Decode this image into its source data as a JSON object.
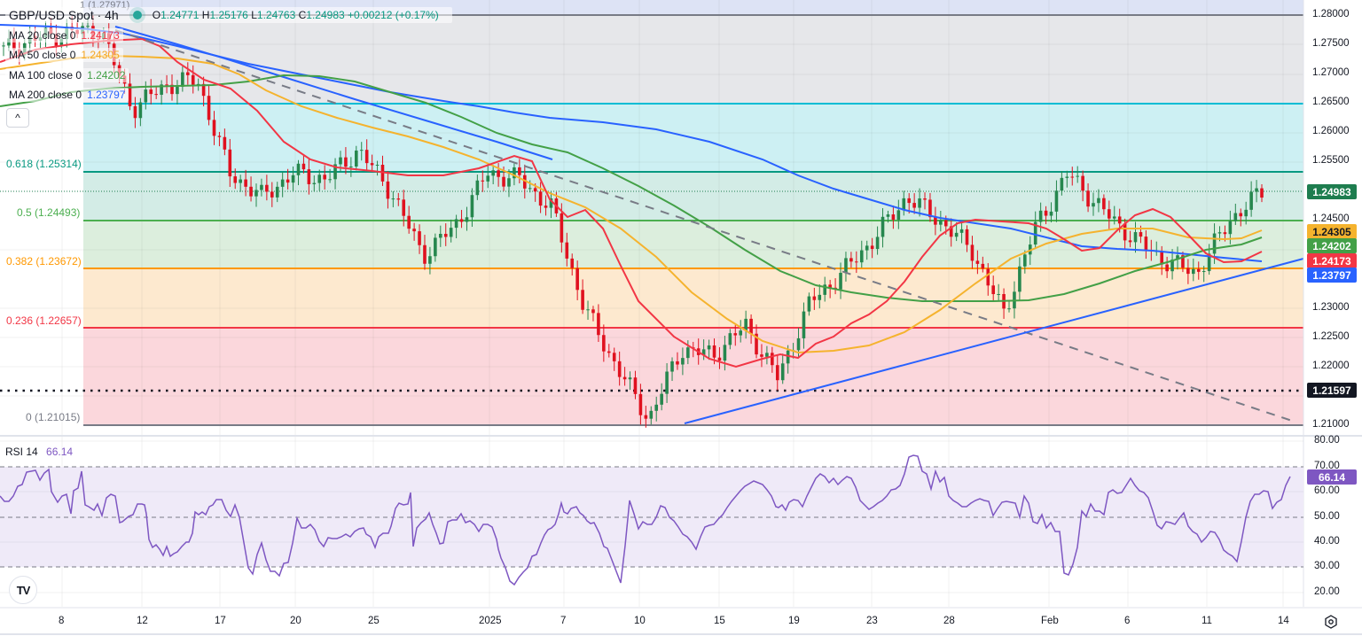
{
  "header": {
    "symbol": "GBP/USD Spot · 4h",
    "ohlc": {
      "open_label": "O",
      "open": "1.24771",
      "high_label": "H",
      "high": "1.25176",
      "low_label": "L",
      "low": "1.24763",
      "close_label": "C",
      "close": "1.24983",
      "change": "+0.00212 (+0.17%)"
    },
    "top_hidden_label": "1 (1.27971)"
  },
  "indicators": [
    {
      "name": "MA 20 close 0",
      "value": "1.24173",
      "color": "#f23645"
    },
    {
      "name": "MA 50 close 0",
      "value": "1.24305",
      "color": "#f5a623"
    },
    {
      "name": "MA 100 close 0",
      "value": "1.24202",
      "color": "#43a047"
    },
    {
      "name": "MA 200 close 0",
      "value": "1.23797",
      "color": "#2962ff"
    }
  ],
  "collapse_button": "^",
  "fib_levels": [
    {
      "ratio": "1",
      "price": "1.27971",
      "label": "1 (1.27971)",
      "color": "#787b86"
    },
    {
      "ratio": "0.618",
      "price": "1.25314",
      "label": "0.618 (1.25314)",
      "color": "#089981"
    },
    {
      "ratio": "0.5",
      "price": "1.24493",
      "label": "0.5 (1.24493)",
      "color": "#4caf50"
    },
    {
      "ratio": "0.382",
      "price": "1.23672",
      "label": "0.382 (1.23672)",
      "color": "#ff9800"
    },
    {
      "ratio": "0.236",
      "price": "1.22657",
      "label": "0.236 (1.22657)",
      "color": "#f23645"
    },
    {
      "ratio": "0",
      "price": "1.21015",
      "label": "0 (1.21015)",
      "color": "#787b86"
    }
  ],
  "price_axis": {
    "ticks": [
      "1.28000",
      "1.27500",
      "1.27000",
      "1.26500",
      "1.26000",
      "1.25500",
      "1.24500",
      "1.23000",
      "1.22500",
      "1.22000",
      "1.21000"
    ],
    "current_price": {
      "value": "1.24983",
      "color": "#1e7d4f"
    },
    "ma_tags": [
      {
        "value": "1.24305",
        "color": "#f5a623"
      },
      {
        "value": "1.24202",
        "color": "#43a047"
      },
      {
        "value": "1.24173",
        "color": "#f23645"
      },
      {
        "value": "1.23797",
        "color": "#2962ff"
      }
    ],
    "horizontal_line": {
      "value": "1.21597",
      "color": "#131722"
    }
  },
  "rsi": {
    "name": "RSI 14",
    "value": "66.14",
    "color": "#7e57c2",
    "ticks": [
      "80.00",
      "70.00",
      "60.00",
      "50.00",
      "40.00",
      "30.00",
      "20.00"
    ]
  },
  "time_axis": {
    "labels": [
      "8",
      "12",
      "17",
      "20",
      "25",
      "2025",
      "7",
      "10",
      "15",
      "19",
      "23",
      "28",
      "Feb",
      "6",
      "11",
      "14"
    ]
  },
  "logo": "TV",
  "chart_data": [
    {
      "type": "candlestick",
      "title": "GBP/USD Spot · 4h",
      "xlabel": "",
      "ylabel": "Price",
      "ylim": [
        1.2075,
        1.281
      ],
      "x": [
        "Dec 8",
        "Dec 12",
        "Dec 17",
        "Dec 20",
        "Dec 25",
        "2025",
        "Jan 7",
        "Jan 10",
        "Jan 15",
        "Jan 19",
        "Jan 23",
        "Jan 28",
        "Feb",
        "Feb 6",
        "Feb 11",
        "Feb 14"
      ],
      "approx_close_path": {
        "x": [
          "Dec 6",
          "Dec 8",
          "Dec 10",
          "Dec 12",
          "Dec 13",
          "Dec 16",
          "Dec 18",
          "Dec 19",
          "Dec 20",
          "Dec 23",
          "Dec 27",
          "Dec 30",
          "Dec 31",
          "Jan 2",
          "Jan 3",
          "Jan 6",
          "Jan 7",
          "Jan 8",
          "Jan 9",
          "Jan 10",
          "Jan 13",
          "Jan 14",
          "Jan 16",
          "Jan 17",
          "Jan 20",
          "Jan 21",
          "Jan 22",
          "Jan 24",
          "Jan 27",
          "Jan 30",
          "Jan 31",
          "Feb 3",
          "Feb 4",
          "Feb 5",
          "Feb 6",
          "Feb 7",
          "Feb 10",
          "Feb 11",
          "Feb 12",
          "Feb 13"
        ],
        "values": [
          1.274,
          1.276,
          1.277,
          1.2775,
          1.264,
          1.268,
          1.269,
          1.253,
          1.249,
          1.253,
          1.252,
          1.257,
          1.25,
          1.239,
          1.244,
          1.253,
          1.252,
          1.247,
          1.23,
          1.22,
          1.211,
          1.223,
          1.222,
          1.227,
          1.218,
          1.231,
          1.236,
          1.242,
          1.249,
          1.245,
          1.24,
          1.229,
          1.244,
          1.253,
          1.247,
          1.242,
          1.238,
          1.236,
          1.245,
          1.2498
        ]
      },
      "series": [
        {
          "name": "MA 20 close 0",
          "last": 1.24173,
          "color": "#f23645"
        },
        {
          "name": "MA 50 close 0",
          "last": 1.24305,
          "color": "#f5a623"
        },
        {
          "name": "MA 100 close 0",
          "last": 1.24202,
          "color": "#43a047"
        },
        {
          "name": "MA 200 close 0",
          "last": 1.23797,
          "color": "#2962ff"
        }
      ],
      "annotations": [
        "Fibonacci retracement 1 (1.27971) to 0 (1.21015): 0.618=1.25314, 0.5=1.24493, 0.382=1.23672, 0.236=1.22657",
        "Horizontal dotted line at 1.21597",
        "Horizontal line at 1.26500 (cyan)",
        "Rising trendline from Jan 13 low (~1.2105) to Feb 14 (~1.2385)",
        "Falling dashed trendline from Dec 6 (~1.2790) to Feb 14 (~1.2110)",
        "Falling channel line from Dec 6 (~1.2780) to Jan 6 (~1.2555)"
      ],
      "last_price": 1.24983,
      "change": "+0.00212 (+0.17%)"
    },
    {
      "type": "line",
      "title": "RSI 14",
      "ylabel": "RSI",
      "ylim": [
        15,
        82
      ],
      "reference_lines": [
        70,
        50,
        30
      ],
      "x": [
        "Dec 6",
        "Dec 8",
        "Dec 11",
        "Dec 13",
        "Dec 16",
        "Dec 18",
        "Dec 19",
        "Dec 20",
        "Dec 24",
        "Dec 27",
        "Dec 30",
        "Jan 2",
        "Jan 3",
        "Jan 6",
        "Jan 7",
        "Jan 8",
        "Jan 10",
        "Jan 13",
        "Jan 15",
        "Jan 17",
        "Jan 20",
        "Jan 22",
        "Jan 24",
        "Jan 27",
        "Jan 29",
        "Jan 31",
        "Feb 3",
        "Feb 4",
        "Feb 5",
        "Feb 7",
        "Feb 10",
        "Feb 11",
        "Feb 12",
        "Feb 13"
      ],
      "values": [
        62,
        68,
        63,
        33,
        30,
        58,
        60,
        28,
        44,
        42,
        64,
        26,
        44,
        52,
        66,
        50,
        36,
        20,
        49,
        41,
        43,
        68,
        74,
        60,
        55,
        48,
        28,
        55,
        65,
        55,
        40,
        33,
        60,
        66.14
      ]
    }
  ]
}
